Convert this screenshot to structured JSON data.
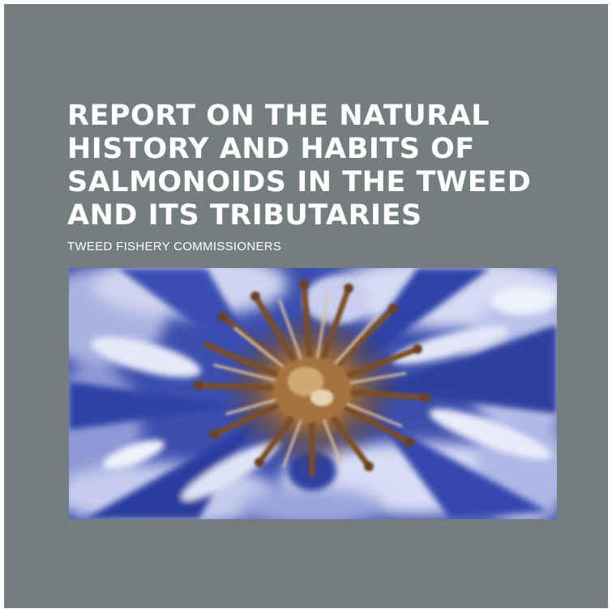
{
  "book": {
    "title_lines": [
      "REPORT ON THE NATURAL",
      "HISTORY AND HABITS OF",
      "SALMONOIDS IN THE TWEED",
      "AND ITS TRIBUTARIES"
    ],
    "author": "TWEED FISHERY COMMISSIONERS"
  },
  "colors": {
    "cover_background": "#747e80",
    "text": "#ffffff",
    "petal_blue": "#3a4fb8",
    "petal_light": "#dfe3f6",
    "center_brown": "#8a5a2e"
  },
  "image": {
    "subject": "flower-photo"
  }
}
